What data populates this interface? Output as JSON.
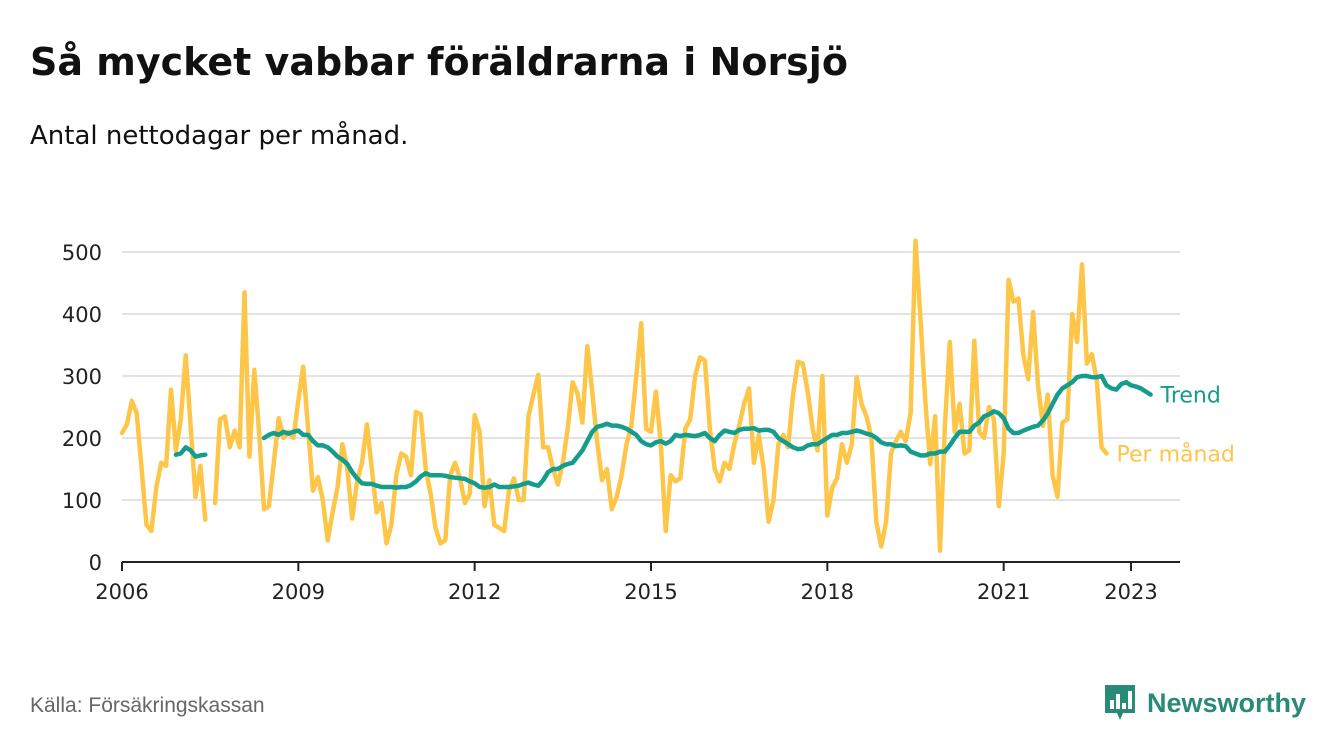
{
  "header": {
    "title": "Så mycket vabbar föräldrarna i Norsjö",
    "subtitle": "Antal nettodagar per månad."
  },
  "footer": {
    "source": "Källa: Försäkringskassan",
    "brand": "Newsworthy",
    "brand_icon": "bar-chart-icon"
  },
  "colors": {
    "monthly": "#fdc649",
    "trend": "#149c8c",
    "grid": "#d9d9d9",
    "axis": "#222222",
    "text": "#111111",
    "source": "#666666",
    "brand": "#2a8a78"
  },
  "chart_data": {
    "type": "line",
    "title": "Så mycket vabbar föräldrarna i Norsjö",
    "subtitle": "Antal nettodagar per månad.",
    "ylim": [
      0,
      500
    ],
    "yticks": [
      0,
      100,
      200,
      300,
      400,
      500
    ],
    "xlim": [
      "2006-01",
      "2024-01"
    ],
    "xticks": [
      {
        "value": "2006-01",
        "label": "2006"
      },
      {
        "value": "2009-01",
        "label": "2009"
      },
      {
        "value": "2012-01",
        "label": "2012"
      },
      {
        "value": "2015-01",
        "label": "2015"
      },
      {
        "value": "2018-01",
        "label": "2018"
      },
      {
        "value": "2021-01",
        "label": "2021"
      },
      {
        "value": "2023-03",
        "label": "2023"
      }
    ],
    "grid": true,
    "legend": "inline-labels-right",
    "series": [
      {
        "name": "Per månad",
        "segments": [
          {
            "start": "2006-01",
            "values": [
              208,
              222,
              260,
              240,
              150,
              60,
              50,
              120,
              160,
              155,
              278,
              180,
              230,
              333,
              220,
              105,
              155,
              68
            ]
          },
          {
            "start": "2007-08",
            "values": [
              95,
              230,
              235,
              185,
              212,
              185,
              435,
              170,
              310,
              210,
              85,
              90,
              160,
              232,
              200,
              210,
              200,
              260,
              315,
              215,
              115,
              137,
              100,
              35,
              80,
              120,
              190,
              150,
              70,
              130,
              160,
              222,
              150,
              80,
              95,
              30,
              60,
              140,
              175,
              170,
              140,
              242,
              238,
              150,
              110,
              55,
              30,
              35,
              140,
              160,
              135,
              95,
              110,
              237,
              210,
              90,
              132,
              60,
              55,
              50,
              115,
              135,
              100,
              100,
              235,
              270,
              302,
              185,
              185,
              150,
              125,
              160,
              215,
              290,
              272,
              225,
              348,
              275,
              195,
              132,
              150,
              85,
              105,
              140,
              190,
              220,
              300,
              385,
              215,
              210,
              275,
              190,
              50,
              140,
              130,
              135,
              215,
              230,
              300,
              330,
              325,
              215,
              150,
              130,
              160,
              150,
              190,
              220,
              255,
              280,
              160,
              205,
              150,
              65,
              100,
              190,
              205,
              185,
              270,
              323,
              320,
              275,
              215,
              180,
              300,
              75,
              120,
              135,
              190,
              160,
              190,
              298,
              255,
              235,
              200,
              65,
              25,
              65,
              175,
              195,
              210,
              195,
              240,
              518,
              395,
              260,
              158,
              235,
              18,
              220,
              355,
              210,
              255,
              175,
              180,
              357,
              210,
              200,
              250,
              230,
              90,
              175,
              455,
              420,
              425,
              335,
              295,
              403,
              285,
              220,
              270,
              140,
              105,
              225,
              230,
              400,
              355,
              480,
              320,
              335,
              295,
              185,
              175
            ]
          }
        ]
      },
      {
        "name": "Trend",
        "segments": [
          {
            "start": "2006-12",
            "values": [
              173,
              175,
              185,
              180,
              170,
              172,
              173
            ]
          },
          {
            "start": "2008-06",
            "values": [
              200,
              205,
              208,
              205,
              210,
              207,
              210,
              212,
              205,
              205,
              195,
              188,
              188,
              185,
              178,
              170,
              165,
              158,
              145,
              135,
              127,
              126,
              126,
              123,
              121,
              121,
              121,
              120,
              121,
              121,
              124,
              130,
              138,
              143,
              140,
              140,
              140,
              139,
              137,
              136,
              135,
              134,
              130,
              127,
              121,
              120,
              121,
              125,
              121,
              121,
              121,
              122,
              123,
              126,
              128,
              125,
              123,
              132,
              145,
              150,
              150,
              155,
              158,
              160,
              170,
              180,
              195,
              210,
              218,
              220,
              223,
              220,
              220,
              218,
              215,
              210,
              205,
              195,
              190,
              188,
              193,
              195,
              191,
              195,
              205,
              203,
              205,
              204,
              203,
              205,
              208,
              200,
              195,
              205,
              212,
              210,
              208,
              213,
              215,
              215,
              216,
              212,
              213,
              213,
              210,
              200,
              195,
              190,
              185,
              182,
              183,
              188,
              190,
              190,
              195,
              200,
              205,
              205,
              208,
              208,
              210,
              212,
              210,
              207,
              205,
              200,
              193,
              190,
              190,
              187,
              188,
              187,
              178,
              175,
              172,
              172,
              175,
              175,
              178,
              178,
              188,
              200,
              210,
              210,
              210,
              220,
              225,
              235,
              238,
              243,
              240,
              232,
              215,
              208,
              208,
              212,
              215,
              218,
              220,
              228,
              240,
              255,
              270,
              280,
              285,
              290,
              298,
              300,
              300,
              298,
              298,
              300,
              285,
              280,
              278,
              287,
              290,
              285,
              283,
              280,
              275,
              270
            ]
          }
        ]
      }
    ]
  }
}
